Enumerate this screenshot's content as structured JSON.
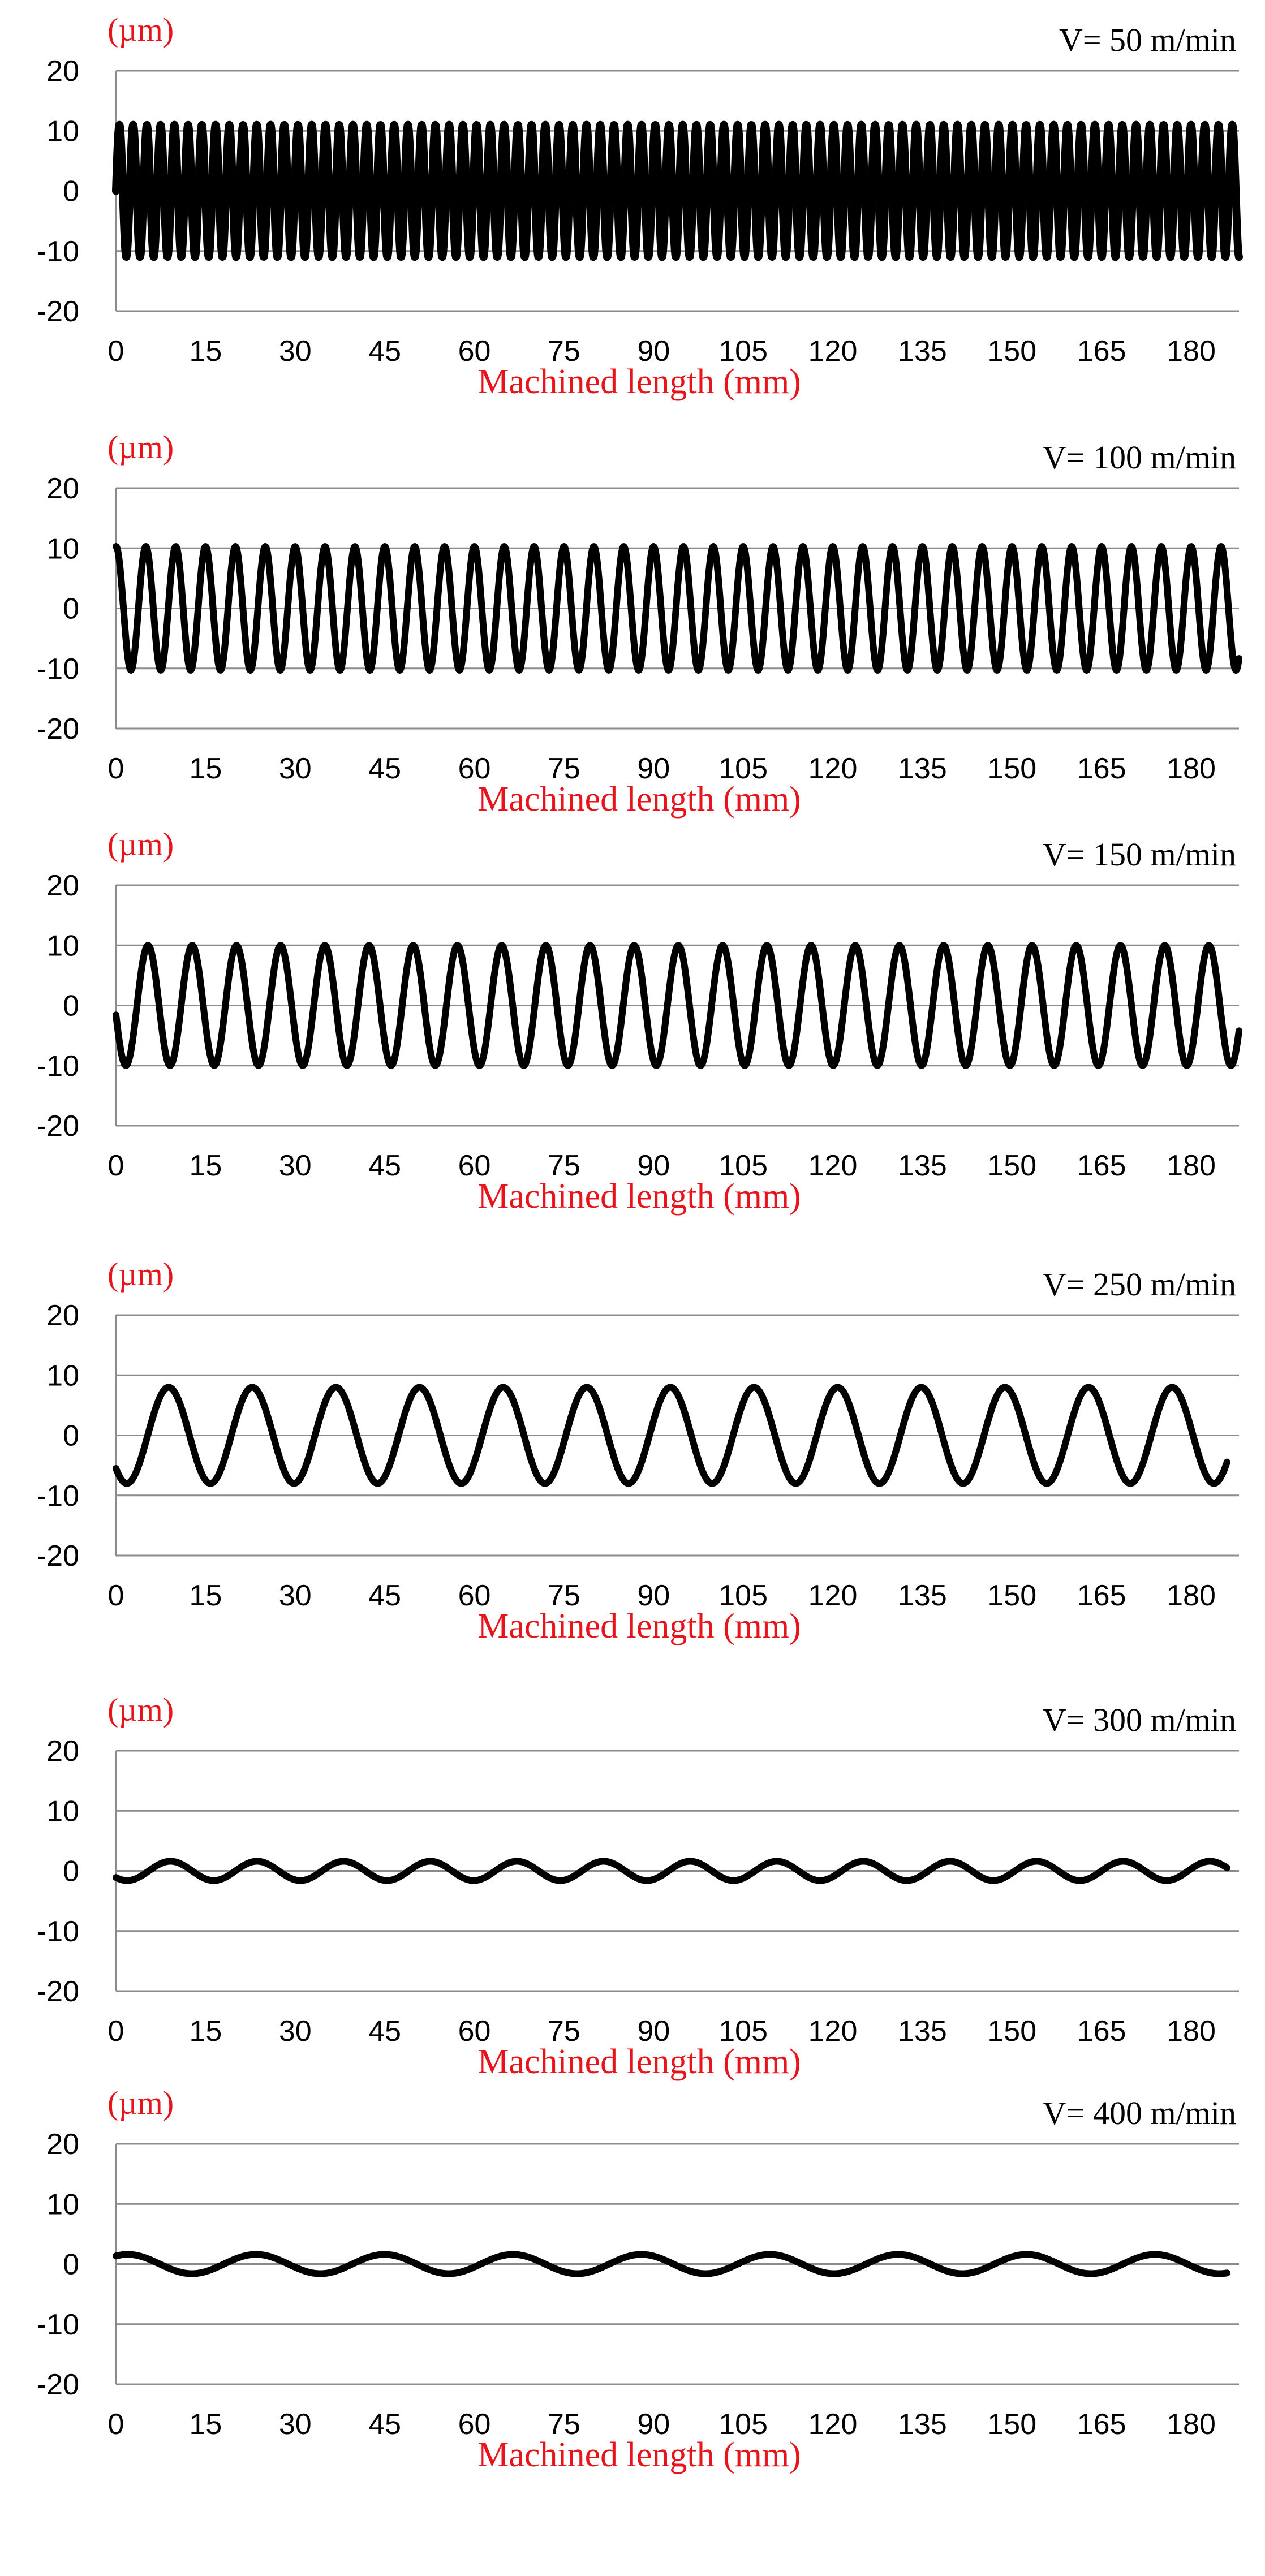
{
  "chart_data": [
    {
      "type": "line",
      "unit_label": "(µm)",
      "speed_label": "V= 50 m/min",
      "xlabel": "Machined length (mm)",
      "x_ticks": [
        "0",
        "15",
        "30",
        "45",
        "60",
        "75",
        "90",
        "105",
        "120",
        "135",
        "150",
        "165",
        "180"
      ],
      "y_ticks": [
        "20",
        "10",
        "0",
        "-10",
        "-20"
      ],
      "xlim": [
        0,
        188
      ],
      "ylim": [
        -20,
        20
      ],
      "grid": true,
      "series": [
        {
          "amplitude": 11,
          "period": 2.3,
          "phase": 0,
          "x_range": [
            0,
            188
          ]
        }
      ]
    },
    {
      "type": "line",
      "unit_label": "(µm)",
      "speed_label": "V= 100 m/min",
      "xlabel": "Machined length (mm)",
      "x_ticks": [
        "0",
        "15",
        "30",
        "45",
        "60",
        "75",
        "90",
        "105",
        "120",
        "135",
        "150",
        "165",
        "180"
      ],
      "y_ticks": [
        "20",
        "10",
        "0",
        "-10",
        "-20"
      ],
      "xlim": [
        0,
        188
      ],
      "ylim": [
        -20,
        20
      ],
      "grid": true,
      "series": [
        {
          "amplitude": 10.3,
          "period": 5.0,
          "phase": 1.57,
          "x_range": [
            0,
            188
          ]
        }
      ]
    },
    {
      "type": "line",
      "unit_label": "(µm)",
      "speed_label": "V= 150 m/min",
      "xlabel": "Machined length (mm)",
      "x_ticks": [
        "0",
        "15",
        "30",
        "45",
        "60",
        "75",
        "90",
        "105",
        "120",
        "135",
        "150",
        "165",
        "180"
      ],
      "y_ticks": [
        "20",
        "10",
        "0",
        "-10",
        "-20"
      ],
      "xlim": [
        0,
        188
      ],
      "ylim": [
        -20,
        20
      ],
      "grid": true,
      "series": [
        {
          "amplitude": 10,
          "period": 7.4,
          "phase": 3.3,
          "x_range": [
            0,
            188
          ]
        }
      ]
    },
    {
      "type": "line",
      "unit_label": "(µm)",
      "speed_label": "V= 250 m/min",
      "xlabel": "Machined length (mm)",
      "x_ticks": [
        "0",
        "15",
        "30",
        "45",
        "60",
        "75",
        "90",
        "105",
        "120",
        "135",
        "150",
        "165",
        "180"
      ],
      "y_ticks": [
        "20",
        "10",
        "0",
        "-10",
        "-20"
      ],
      "xlim": [
        0,
        188
      ],
      "ylim": [
        -20,
        20
      ],
      "grid": true,
      "series": [
        {
          "amplitude": 8,
          "period": 14.0,
          "phase": 3.9,
          "x_range": [
            0,
            186
          ]
        }
      ]
    },
    {
      "type": "line",
      "unit_label": "(µm)",
      "speed_label": "V= 300 m/min",
      "xlabel": "Machined length (mm)",
      "x_ticks": [
        "0",
        "15",
        "30",
        "45",
        "60",
        "75",
        "90",
        "105",
        "120",
        "135",
        "150",
        "165",
        "180"
      ],
      "y_ticks": [
        "20",
        "10",
        "0",
        "-10",
        "-20"
      ],
      "xlim": [
        0,
        188
      ],
      "ylim": [
        -20,
        20
      ],
      "grid": true,
      "series": [
        {
          "amplitude": 1.6,
          "period": 14.5,
          "phase": 3.9,
          "x_range": [
            0,
            186
          ]
        }
      ]
    },
    {
      "type": "line",
      "unit_label": "(µm)",
      "speed_label": "V= 400 m/min",
      "xlabel": "Machined length (mm)",
      "x_ticks": [
        "0",
        "15",
        "30",
        "45",
        "60",
        "75",
        "90",
        "105",
        "120",
        "135",
        "150",
        "165",
        "180"
      ],
      "y_ticks": [
        "20",
        "10",
        "0",
        "-10",
        "-20"
      ],
      "xlim": [
        0,
        188
      ],
      "ylim": [
        -20,
        20
      ],
      "grid": true,
      "series": [
        {
          "amplitude": 1.6,
          "period": 21.5,
          "phase": 1.0,
          "x_range": [
            0,
            186
          ]
        }
      ]
    }
  ]
}
